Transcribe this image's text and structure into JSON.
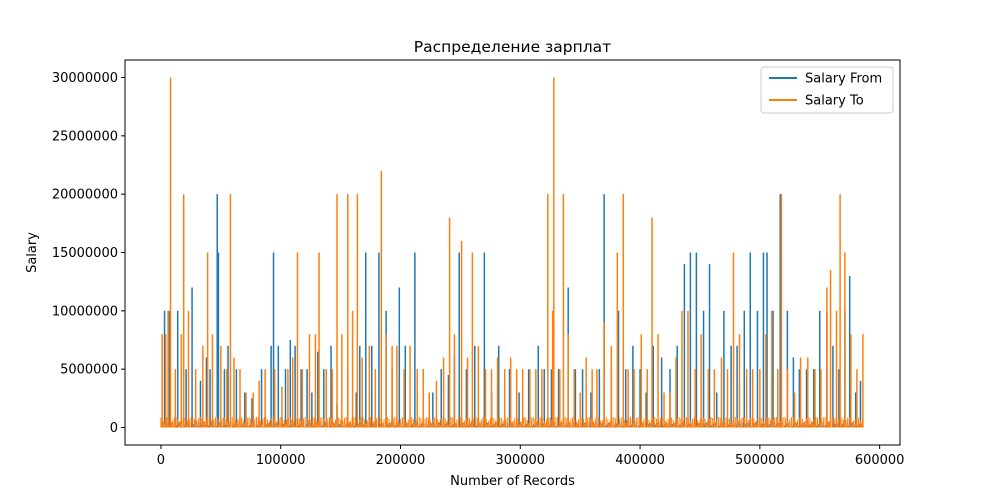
{
  "chart_data": {
    "type": "line",
    "title": "Распределение зарплат",
    "xlabel": "Number of Records",
    "ylabel": "Salary",
    "xlim": [
      -30000,
      617000
    ],
    "ylim": [
      -1500000,
      31500000
    ],
    "x_ticks": [
      0,
      100000,
      200000,
      300000,
      400000,
      500000,
      600000
    ],
    "x_tick_labels": [
      "0",
      "100000",
      "200000",
      "300000",
      "400000",
      "500000",
      "600000"
    ],
    "y_ticks": [
      0,
      5000000,
      10000000,
      15000000,
      20000000,
      25000000,
      30000000
    ],
    "y_tick_labels": [
      "0",
      "5000000",
      "10000000",
      "15000000",
      "20000000",
      "25000000",
      "30000000"
    ],
    "grid": false,
    "legend_position": "top-right",
    "series": [
      {
        "name": "Salary From",
        "color": "#1f77b4",
        "baseline": 400000,
        "spikes": [
          [
            3000,
            10000000
          ],
          [
            7000,
            10000000
          ],
          [
            14000,
            10000000
          ],
          [
            21000,
            5000000
          ],
          [
            26000,
            12000000
          ],
          [
            33000,
            4000000
          ],
          [
            38000,
            6000000
          ],
          [
            41000,
            5000000
          ],
          [
            47000,
            20000000
          ],
          [
            48000,
            15000000
          ],
          [
            53000,
            5000000
          ],
          [
            56000,
            7000000
          ],
          [
            63000,
            5000000
          ],
          [
            70000,
            3000000
          ],
          [
            76000,
            2500000
          ],
          [
            84000,
            5000000
          ],
          [
            92000,
            7000000
          ],
          [
            94000,
            15000000
          ],
          [
            98000,
            7000000
          ],
          [
            104000,
            5000000
          ],
          [
            108000,
            7500000
          ],
          [
            112000,
            7000000
          ],
          [
            117000,
            5000000
          ],
          [
            122000,
            5000000
          ],
          [
            126000,
            3000000
          ],
          [
            131000,
            6500000
          ],
          [
            136000,
            5000000
          ],
          [
            142000,
            7000000
          ],
          [
            147000,
            2000000
          ],
          [
            156000,
            5000000
          ],
          [
            163000,
            3000000
          ],
          [
            166000,
            7000000
          ],
          [
            171000,
            15000000
          ],
          [
            176000,
            7000000
          ],
          [
            182000,
            15000000
          ],
          [
            188000,
            10000000
          ],
          [
            193000,
            5000000
          ],
          [
            199000,
            12000000
          ],
          [
            204000,
            7000000
          ],
          [
            212000,
            15000000
          ],
          [
            219000,
            5000000
          ],
          [
            227000,
            3000000
          ],
          [
            234000,
            5000000
          ],
          [
            240000,
            4500000
          ],
          [
            245000,
            6000000
          ],
          [
            249000,
            15000000
          ],
          [
            255000,
            5000000
          ],
          [
            262000,
            7000000
          ],
          [
            270000,
            15000000
          ],
          [
            276000,
            3000000
          ],
          [
            282000,
            7000000
          ],
          [
            291000,
            5000000
          ],
          [
            299000,
            3000000
          ],
          [
            307000,
            5000000
          ],
          [
            315000,
            7000000
          ],
          [
            320000,
            5000000
          ],
          [
            326000,
            5000000
          ],
          [
            332000,
            5000000
          ],
          [
            340000,
            12000000
          ],
          [
            346000,
            5000000
          ],
          [
            352000,
            5000000
          ],
          [
            359000,
            3000000
          ],
          [
            366000,
            5000000
          ],
          [
            370000,
            20000000
          ],
          [
            376000,
            5000000
          ],
          [
            382000,
            10000000
          ],
          [
            388000,
            5000000
          ],
          [
            394000,
            7000000
          ],
          [
            400000,
            5000000
          ],
          [
            405000,
            3000000
          ],
          [
            411000,
            7000000
          ],
          [
            418000,
            6000000
          ],
          [
            425000,
            5000000
          ],
          [
            431000,
            7000000
          ],
          [
            437000,
            14000000
          ],
          [
            442000,
            15000000
          ],
          [
            447000,
            15000000
          ],
          [
            453000,
            10000000
          ],
          [
            458000,
            14000000
          ],
          [
            464000,
            3000000
          ],
          [
            470000,
            10000000
          ],
          [
            476000,
            7000000
          ],
          [
            481000,
            7000000
          ],
          [
            487000,
            10000000
          ],
          [
            492000,
            15000000
          ],
          [
            498000,
            10000000
          ],
          [
            503000,
            15000000
          ],
          [
            506000,
            15000000
          ],
          [
            511000,
            10000000
          ],
          [
            517000,
            20000000
          ],
          [
            523000,
            10000000
          ],
          [
            528000,
            6000000
          ],
          [
            533000,
            5000000
          ],
          [
            539000,
            5000000
          ],
          [
            545000,
            5000000
          ],
          [
            550000,
            10000000
          ],
          [
            556000,
            10000000
          ],
          [
            561000,
            7000000
          ],
          [
            566000,
            5000000
          ],
          [
            571000,
            10000000
          ],
          [
            575000,
            13000000
          ],
          [
            580000,
            3000000
          ],
          [
            584000,
            4000000
          ]
        ]
      },
      {
        "name": "Salary To",
        "color": "#ff7f0e",
        "baseline": 1000000,
        "spikes": [
          [
            1000,
            8000000
          ],
          [
            4000,
            8000000
          ],
          [
            6000,
            10000000
          ],
          [
            8000,
            30000000
          ],
          [
            12000,
            5000000
          ],
          [
            17000,
            8000000
          ],
          [
            19000,
            20000000
          ],
          [
            23000,
            10000000
          ],
          [
            29000,
            5000000
          ],
          [
            35000,
            7000000
          ],
          [
            39000,
            15000000
          ],
          [
            43000,
            8000000
          ],
          [
            50000,
            7000000
          ],
          [
            55000,
            5000000
          ],
          [
            58000,
            20000000
          ],
          [
            61000,
            6000000
          ],
          [
            66000,
            5000000
          ],
          [
            71000,
            3000000
          ],
          [
            77000,
            3000000
          ],
          [
            82000,
            4000000
          ],
          [
            87000,
            5000000
          ],
          [
            95000,
            5000000
          ],
          [
            101000,
            3500000
          ],
          [
            106000,
            5000000
          ],
          [
            110000,
            6000000
          ],
          [
            114000,
            15000000
          ],
          [
            118000,
            5000000
          ],
          [
            124000,
            8000000
          ],
          [
            129000,
            8000000
          ],
          [
            132000,
            15000000
          ],
          [
            138000,
            5000000
          ],
          [
            143000,
            5000000
          ],
          [
            147000,
            20000000
          ],
          [
            151000,
            8000000
          ],
          [
            156000,
            20000000
          ],
          [
            160000,
            10000000
          ],
          [
            164000,
            20000000
          ],
          [
            168000,
            6000000
          ],
          [
            174000,
            7000000
          ],
          [
            179000,
            5000000
          ],
          [
            184000,
            22000000
          ],
          [
            188000,
            8000000
          ],
          [
            193000,
            7000000
          ],
          [
            197000,
            7000000
          ],
          [
            203000,
            5000000
          ],
          [
            208000,
            7000000
          ],
          [
            214000,
            5000000
          ],
          [
            219000,
            5000000
          ],
          [
            224000,
            3000000
          ],
          [
            230000,
            4000000
          ],
          [
            236000,
            6000000
          ],
          [
            241000,
            18000000
          ],
          [
            245000,
            8000000
          ],
          [
            251000,
            16000000
          ],
          [
            256000,
            6000000
          ],
          [
            260000,
            15000000
          ],
          [
            265000,
            7000000
          ],
          [
            271000,
            5000000
          ],
          [
            276000,
            5000000
          ],
          [
            281000,
            6000000
          ],
          [
            287000,
            5000000
          ],
          [
            292000,
            6000000
          ],
          [
            297000,
            5000000
          ],
          [
            302000,
            5000000
          ],
          [
            308000,
            5000000
          ],
          [
            313000,
            5000000
          ],
          [
            318000,
            5000000
          ],
          [
            323000,
            20000000
          ],
          [
            327000,
            10000000
          ],
          [
            328000,
            30000000
          ],
          [
            333000,
            5000000
          ],
          [
            336000,
            20000000
          ],
          [
            340000,
            8000000
          ],
          [
            345000,
            5000000
          ],
          [
            350000,
            3000000
          ],
          [
            355000,
            6000000
          ],
          [
            360000,
            5000000
          ],
          [
            364000,
            5000000
          ],
          [
            370000,
            9000000
          ],
          [
            376000,
            7000000
          ],
          [
            381000,
            15000000
          ],
          [
            386000,
            20000000
          ],
          [
            390000,
            5000000
          ],
          [
            395000,
            5000000
          ],
          [
            401000,
            8000000
          ],
          [
            406000,
            5000000
          ],
          [
            410000,
            18000000
          ],
          [
            415000,
            8000000
          ],
          [
            420000,
            3000000
          ],
          [
            425000,
            3000000
          ],
          [
            430000,
            6000000
          ],
          [
            435000,
            10000000
          ],
          [
            440000,
            10000000
          ],
          [
            446000,
            5000000
          ],
          [
            451000,
            8000000
          ],
          [
            457000,
            5000000
          ],
          [
            462000,
            5000000
          ],
          [
            468000,
            6000000
          ],
          [
            473000,
            5000000
          ],
          [
            478000,
            15000000
          ],
          [
            483000,
            8000000
          ],
          [
            489000,
            5000000
          ],
          [
            494000,
            5000000
          ],
          [
            500000,
            5000000
          ],
          [
            505000,
            8000000
          ],
          [
            510000,
            10000000
          ],
          [
            515000,
            5000000
          ],
          [
            518000,
            20000000
          ],
          [
            523000,
            5000000
          ],
          [
            529000,
            3000000
          ],
          [
            534000,
            6000000
          ],
          [
            540000,
            6000000
          ],
          [
            546000,
            5000000
          ],
          [
            551000,
            5000000
          ],
          [
            556000,
            12000000
          ],
          [
            559000,
            13500000
          ],
          [
            564000,
            10000000
          ],
          [
            567000,
            20000000
          ],
          [
            571000,
            15000000
          ],
          [
            576000,
            8000000
          ],
          [
            581000,
            5000000
          ],
          [
            586000,
            8000000
          ]
        ]
      }
    ]
  }
}
